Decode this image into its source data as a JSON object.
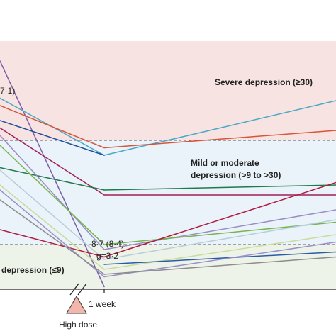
{
  "chart_data": {
    "type": "line",
    "x_ticks": [
      "1 week"
    ],
    "dose_label": "High dose",
    "ylim": [
      0,
      50
    ],
    "thresholds": [
      9,
      30
    ],
    "zones": [
      {
        "label": "Severe depression (≥30)",
        "color": "#f7e4e2"
      },
      {
        "label": "Mild or moderate",
        "label2": "depression (>9 to >30)",
        "color": "#eaf3f9"
      },
      {
        "label": "depression (≤9)",
        "color": "#eef3ea"
      }
    ],
    "annotations": {
      "top_left": "7·1)",
      "mean_week": "8·7 (8·4)",
      "effect": "g=3·2"
    },
    "series": [
      {
        "color": "#7b5fa8",
        "values": [
          46.0,
          0.5,
          null
        ]
      },
      {
        "color": "#4aa8c8",
        "values": [
          38.5,
          27.0,
          38.0
        ]
      },
      {
        "color": "#d9533a",
        "values": [
          37.0,
          28.5,
          32.0
        ]
      },
      {
        "color": "#1f4e9e",
        "values": [
          34.0,
          27.0,
          null
        ]
      },
      {
        "color": "#9e1f5a",
        "values": [
          32.5,
          19.0,
          19.0
        ]
      },
      {
        "color": "#1f7a4a",
        "values": [
          24.5,
          20.0,
          21.0
        ]
      },
      {
        "color": "#9b8bc6",
        "values": [
          31.0,
          8.0,
          16.0
        ]
      },
      {
        "color": "#76b44a",
        "values": [
          29.0,
          9.0,
          13.5
        ]
      },
      {
        "color": "#b5cdda",
        "values": [
          24.0,
          6.0,
          14.0
        ]
      },
      {
        "color": "#c9dc9a",
        "values": [
          21.0,
          4.0,
          11.0
        ]
      },
      {
        "color": "#b11a3e",
        "values": [
          12.0,
          6.5,
          21.5
        ]
      },
      {
        "color": "#2a5ba8",
        "values": [
          null,
          5.0,
          7.5
        ]
      },
      {
        "color": "#9a8fc8",
        "values": [
          20.0,
          2.5,
          9.5
        ]
      },
      {
        "color": "#8c8c8c",
        "values": [
          18.0,
          3.0,
          6.5
        ]
      }
    ]
  }
}
